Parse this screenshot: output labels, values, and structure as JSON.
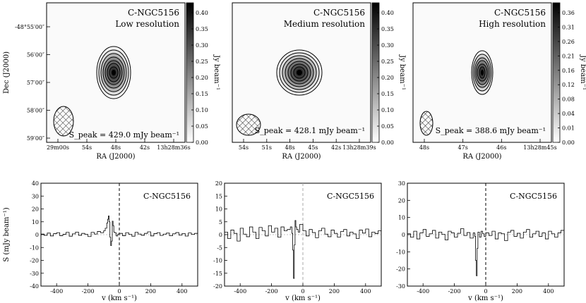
{
  "chart_data": [
    {
      "type": "heatmap",
      "title": "C-NGC5156",
      "subtitle": "Low resolution",
      "xlabel": "RA (J2000)",
      "ylabel": "Dec (J2000)",
      "x_ticks": [
        "29m00s",
        "54s",
        "48s",
        "42s",
        "13h28m36s"
      ],
      "y_ticks": [
        "-48°55′00″",
        "56′00″",
        "57′00″",
        "58′00″",
        "59′00″"
      ],
      "colorbar": {
        "label": "Jy beam⁻¹",
        "range": [
          0.0,
          0.43
        ],
        "ticks": [
          "0.00",
          "0.05",
          "0.10",
          "0.15",
          "0.20",
          "0.25",
          "0.30",
          "0.35",
          "0.40"
        ]
      },
      "peak_label": "S_peak = 429.0 mJy beam⁻¹",
      "source": {
        "center_ra": "13h28m47.5s",
        "center_dec": "-48°56′40″"
      },
      "contours": 8,
      "beam": "hatched ellipse, lower-left"
    },
    {
      "type": "heatmap",
      "title": "C-NGC5156",
      "subtitle": "Medium resolution",
      "xlabel": "RA (J2000)",
      "x_ticks": [
        "54s",
        "51s",
        "48s",
        "45s",
        "42s",
        "13h28m39s"
      ],
      "colorbar": {
        "label": "Jy beam⁻¹",
        "range": [
          0.0,
          0.43
        ],
        "ticks": [
          "0.00",
          "0.05",
          "0.10",
          "0.15",
          "0.20",
          "0.25",
          "0.30",
          "0.35",
          "0.40"
        ]
      },
      "peak_label": "S_peak = 428.1 mJy beam⁻¹",
      "contours": 8,
      "beam": "hatched ellipse, lower-left"
    },
    {
      "type": "heatmap",
      "title": "C-NGC5156",
      "subtitle": "High resolution",
      "xlabel": "RA (J2000)",
      "x_ticks": [
        "48s",
        "47s",
        "46s",
        "13h28m45s"
      ],
      "colorbar": {
        "label": "Jy beam⁻¹",
        "range": [
          0.0,
          0.38
        ],
        "ticks": [
          "0.00",
          "0.01",
          "0.04",
          "0.08",
          "0.12",
          "0.16",
          "0.21",
          "0.26",
          "0.31",
          "0.36"
        ]
      },
      "peak_label": "S_peak = 388.6 mJy beam⁻¹",
      "contours": 7,
      "beam": "hatched ellipse, lower-left"
    },
    {
      "type": "line",
      "title": "C-NGC5156",
      "xlabel": "v (km s⁻¹)",
      "ylabel": "S (mJy beam⁻¹)",
      "xlim": [
        -500,
        500
      ],
      "ylim": [
        -40,
        40
      ],
      "x_ticks": [
        -400,
        -200,
        0,
        200,
        400
      ],
      "y_ticks": [
        -40,
        -30,
        -20,
        -10,
        0,
        10,
        20,
        30,
        40
      ],
      "x": [
        -500,
        -480,
        -460,
        -440,
        -420,
        -400,
        -380,
        -360,
        -340,
        -320,
        -300,
        -280,
        -260,
        -240,
        -220,
        -200,
        -180,
        -160,
        -140,
        -120,
        -100,
        -90,
        -80,
        -75,
        -70,
        -65,
        -60,
        -55,
        -50,
        -45,
        -40,
        -35,
        -30,
        -20,
        -10,
        0,
        20,
        40,
        60,
        80,
        100,
        120,
        140,
        160,
        180,
        200,
        220,
        240,
        260,
        280,
        300,
        320,
        340,
        360,
        380,
        400,
        420,
        440,
        460,
        480,
        500
      ],
      "y": [
        0.5,
        -0.5,
        1.2,
        -1.0,
        0.8,
        1.5,
        -0.8,
        0.3,
        1.8,
        -1.2,
        0.6,
        2.0,
        -0.5,
        1.0,
        0.2,
        -1.5,
        1.8,
        0.5,
        2.5,
        1.5,
        3.0,
        5.0,
        9.0,
        12.0,
        14.5,
        10.0,
        -2.0,
        -8.5,
        -5.0,
        10.5,
        7.0,
        2.0,
        1.5,
        -1.0,
        0.5,
        1.0,
        -0.8,
        1.5,
        0.2,
        -1.2,
        1.8,
        0.5,
        -0.5,
        1.0,
        2.2,
        -1.0,
        0.8,
        1.5,
        -0.6,
        0.4,
        1.2,
        -0.9,
        0.7,
        1.6,
        -0.4,
        0.9,
        -1.1,
        1.3,
        0.2,
        1.0,
        0.5
      ]
    },
    {
      "type": "line",
      "title": "C-NGC5156",
      "xlabel": "v (km s⁻¹)",
      "xlim": [
        -500,
        500
      ],
      "ylim": [
        -20,
        20
      ],
      "x_ticks": [
        -400,
        -200,
        0,
        200,
        400
      ],
      "y_ticks": [
        -20,
        -15,
        -10,
        -5,
        0,
        5,
        10,
        15,
        20
      ],
      "x": [
        -500,
        -480,
        -460,
        -440,
        -420,
        -400,
        -380,
        -360,
        -340,
        -320,
        -300,
        -280,
        -260,
        -240,
        -220,
        -200,
        -180,
        -160,
        -140,
        -120,
        -100,
        -80,
        -70,
        -65,
        -60,
        -55,
        -50,
        -45,
        -40,
        -30,
        -20,
        0,
        20,
        40,
        60,
        80,
        100,
        120,
        140,
        160,
        180,
        200,
        220,
        240,
        260,
        280,
        300,
        320,
        340,
        360,
        380,
        400,
        420,
        440,
        460,
        480,
        500
      ],
      "y": [
        1.0,
        -1.5,
        1.8,
        0.5,
        -2.5,
        2.5,
        0.2,
        -0.8,
        3.0,
        1.0,
        -1.5,
        2.8,
        1.5,
        -0.5,
        3.5,
        1.0,
        2.5,
        -1.0,
        3.0,
        1.5,
        2.0,
        3.0,
        0.5,
        -6.0,
        -17.0,
        -4.0,
        5.5,
        3.0,
        2.0,
        1.0,
        4.0,
        1.5,
        -0.5,
        2.0,
        0.8,
        -1.2,
        1.5,
        2.5,
        0.2,
        -0.8,
        1.8,
        0.5,
        -1.0,
        1.2,
        2.0,
        -0.5,
        1.0,
        0.3,
        -1.5,
        1.8,
        0.6,
        2.2,
        -0.8,
        1.0,
        0.4,
        1.5,
        4.0
      ]
    },
    {
      "type": "line",
      "title": "C-NGC5156",
      "xlabel": "v (km s⁻¹)",
      "xlim": [
        -500,
        500
      ],
      "ylim": [
        -30,
        30
      ],
      "x_ticks": [
        -400,
        -200,
        0,
        200,
        400
      ],
      "y_ticks": [
        -30,
        -20,
        -10,
        0,
        10,
        20,
        30
      ],
      "x": [
        -500,
        -480,
        -460,
        -440,
        -420,
        -400,
        -380,
        -360,
        -340,
        -320,
        -300,
        -280,
        -260,
        -240,
        -220,
        -200,
        -180,
        -160,
        -140,
        -120,
        -100,
        -80,
        -70,
        -65,
        -60,
        -55,
        -50,
        -40,
        -30,
        -20,
        -10,
        0,
        20,
        40,
        60,
        80,
        100,
        120,
        140,
        160,
        180,
        200,
        220,
        240,
        260,
        280,
        300,
        320,
        340,
        360,
        380,
        400,
        420,
        440,
        460,
        480,
        500
      ],
      "y": [
        0.5,
        -1.5,
        2.0,
        -2.5,
        1.0,
        3.0,
        -1.0,
        0.5,
        2.5,
        -2.0,
        1.5,
        0.2,
        -3.0,
        2.0,
        1.0,
        -1.5,
        0.8,
        3.5,
        -0.5,
        1.2,
        -2.0,
        1.0,
        -1.0,
        -15.0,
        -24.0,
        -8.0,
        1.5,
        -1.5,
        2.0,
        0.5,
        -1.0,
        1.0,
        -0.5,
        2.0,
        -2.5,
        1.0,
        0.5,
        -3.5,
        1.5,
        2.5,
        -1.0,
        0.8,
        -2.0,
        1.5,
        3.0,
        -1.5,
        0.5,
        2.0,
        -1.0,
        1.0,
        -2.5,
        2.0,
        0.5,
        -1.5,
        1.0,
        2.5,
        0.5
      ]
    }
  ]
}
